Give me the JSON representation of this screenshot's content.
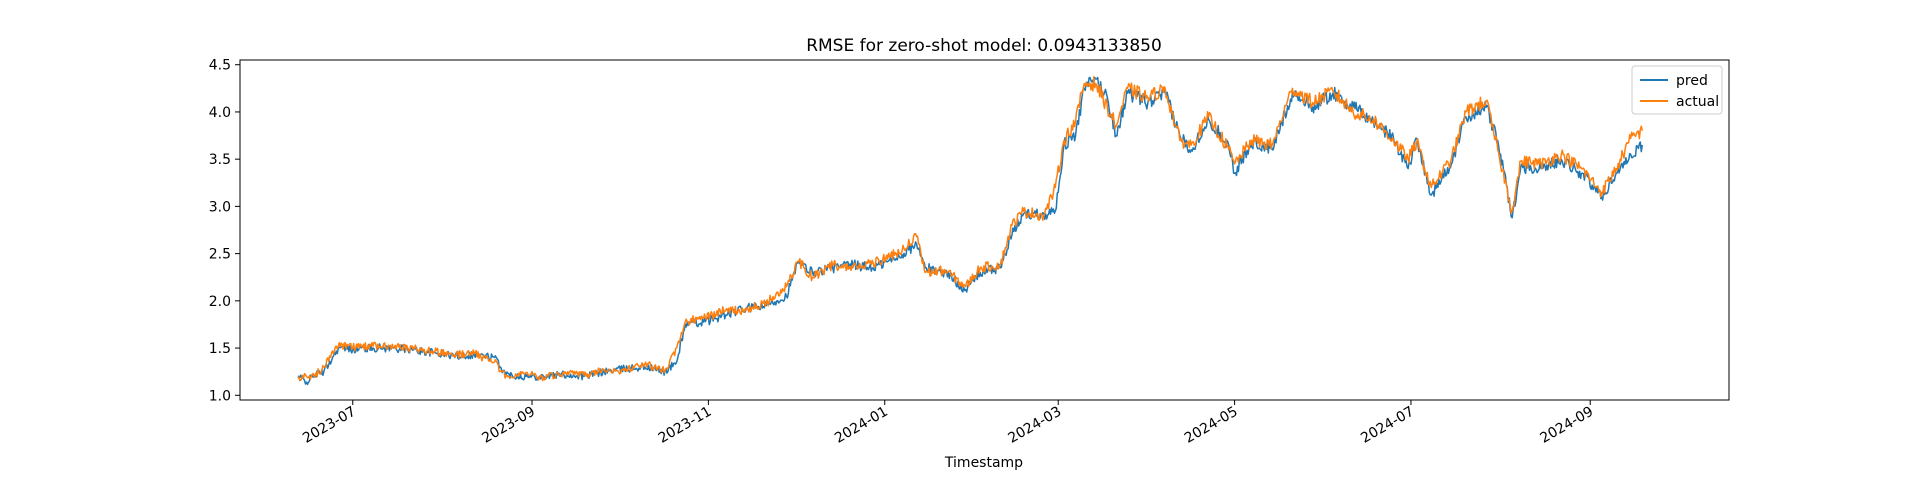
{
  "chart_data": {
    "type": "line",
    "title": "RMSE for zero-shot model: 0.0943133850",
    "xlabel": "Timestamp",
    "ylabel": "",
    "xlim": [
      "2023-05-23",
      "2024-10-19"
    ],
    "ylim": [
      0.95,
      4.55
    ],
    "x_ticks": [
      "2023-07",
      "2023-09",
      "2023-11",
      "2024-01",
      "2024-03",
      "2024-05",
      "2024-07",
      "2024-09"
    ],
    "y_ticks": [
      "1.0",
      "1.5",
      "2.0",
      "2.5",
      "3.0",
      "3.5",
      "4.0",
      "4.5"
    ],
    "grid": false,
    "legend_position": "top-right",
    "series": [
      {
        "name": "pred",
        "color": "#1f77b4",
        "points": [
          [
            "2023-06-12",
            1.2
          ],
          [
            "2023-06-15",
            1.14
          ],
          [
            "2023-06-18",
            1.22
          ],
          [
            "2023-06-21",
            1.25
          ],
          [
            "2023-06-24",
            1.4
          ],
          [
            "2023-06-26",
            1.5
          ],
          [
            "2023-07-01",
            1.49
          ],
          [
            "2023-07-08",
            1.5
          ],
          [
            "2023-07-15",
            1.5
          ],
          [
            "2023-07-22",
            1.48
          ],
          [
            "2023-07-29",
            1.45
          ],
          [
            "2023-08-05",
            1.42
          ],
          [
            "2023-08-12",
            1.43
          ],
          [
            "2023-08-19",
            1.4
          ],
          [
            "2023-08-23",
            1.22
          ],
          [
            "2023-08-30",
            1.2
          ],
          [
            "2023-09-05",
            1.2
          ],
          [
            "2023-09-12",
            1.22
          ],
          [
            "2023-09-19",
            1.2
          ],
          [
            "2023-09-26",
            1.25
          ],
          [
            "2023-10-03",
            1.28
          ],
          [
            "2023-10-10",
            1.3
          ],
          [
            "2023-10-17",
            1.25
          ],
          [
            "2023-10-21",
            1.35
          ],
          [
            "2023-10-24",
            1.75
          ],
          [
            "2023-10-31",
            1.78
          ],
          [
            "2023-11-07",
            1.85
          ],
          [
            "2023-11-14",
            1.92
          ],
          [
            "2023-11-21",
            1.95
          ],
          [
            "2023-11-28",
            2.05
          ],
          [
            "2023-12-02",
            2.4
          ],
          [
            "2023-12-07",
            2.3
          ],
          [
            "2023-12-14",
            2.35
          ],
          [
            "2023-12-21",
            2.38
          ],
          [
            "2023-12-28",
            2.35
          ],
          [
            "2024-01-05",
            2.45
          ],
          [
            "2024-01-12",
            2.6
          ],
          [
            "2024-01-15",
            2.35
          ],
          [
            "2024-01-22",
            2.3
          ],
          [
            "2024-01-29",
            2.12
          ],
          [
            "2024-02-03",
            2.3
          ],
          [
            "2024-02-10",
            2.35
          ],
          [
            "2024-02-14",
            2.7
          ],
          [
            "2024-02-18",
            2.92
          ],
          [
            "2024-02-25",
            2.92
          ],
          [
            "2024-02-29",
            2.95
          ],
          [
            "2024-03-03",
            3.65
          ],
          [
            "2024-03-07",
            3.75
          ],
          [
            "2024-03-10",
            4.25
          ],
          [
            "2024-03-14",
            4.35
          ],
          [
            "2024-03-18",
            4.15
          ],
          [
            "2024-03-21",
            3.75
          ],
          [
            "2024-03-25",
            4.2
          ],
          [
            "2024-04-01",
            4.1
          ],
          [
            "2024-04-07",
            4.2
          ],
          [
            "2024-04-12",
            3.75
          ],
          [
            "2024-04-16",
            3.6
          ],
          [
            "2024-04-22",
            3.92
          ],
          [
            "2024-04-29",
            3.65
          ],
          [
            "2024-05-01",
            3.35
          ],
          [
            "2024-05-07",
            3.68
          ],
          [
            "2024-05-14",
            3.6
          ],
          [
            "2024-05-21",
            4.2
          ],
          [
            "2024-05-28",
            4.05
          ],
          [
            "2024-06-04",
            4.2
          ],
          [
            "2024-06-11",
            4.05
          ],
          [
            "2024-06-18",
            3.9
          ],
          [
            "2024-06-25",
            3.72
          ],
          [
            "2024-06-30",
            3.4
          ],
          [
            "2024-07-03",
            3.72
          ],
          [
            "2024-07-08",
            3.12
          ],
          [
            "2024-07-15",
            3.45
          ],
          [
            "2024-07-20",
            3.95
          ],
          [
            "2024-07-27",
            4.05
          ],
          [
            "2024-07-31",
            3.7
          ],
          [
            "2024-08-05",
            2.88
          ],
          [
            "2024-08-08",
            3.42
          ],
          [
            "2024-08-15",
            3.4
          ],
          [
            "2024-08-22",
            3.5
          ],
          [
            "2024-08-29",
            3.35
          ],
          [
            "2024-09-05",
            3.1
          ],
          [
            "2024-09-10",
            3.35
          ],
          [
            "2024-09-15",
            3.55
          ],
          [
            "2024-09-19",
            3.65
          ]
        ]
      },
      {
        "name": "actual",
        "color": "#ff7f0e",
        "points": [
          [
            "2023-06-12",
            1.18
          ],
          [
            "2023-06-15",
            1.2
          ],
          [
            "2023-06-18",
            1.21
          ],
          [
            "2023-06-21",
            1.3
          ],
          [
            "2023-06-24",
            1.47
          ],
          [
            "2023-06-26",
            1.52
          ],
          [
            "2023-07-01",
            1.51
          ],
          [
            "2023-07-08",
            1.52
          ],
          [
            "2023-07-15",
            1.51
          ],
          [
            "2023-07-22",
            1.49
          ],
          [
            "2023-07-29",
            1.46
          ],
          [
            "2023-08-05",
            1.43
          ],
          [
            "2023-08-12",
            1.44
          ],
          [
            "2023-08-19",
            1.35
          ],
          [
            "2023-08-23",
            1.2
          ],
          [
            "2023-08-30",
            1.24
          ],
          [
            "2023-09-05",
            1.19
          ],
          [
            "2023-09-12",
            1.23
          ],
          [
            "2023-09-19",
            1.21
          ],
          [
            "2023-09-26",
            1.27
          ],
          [
            "2023-10-03",
            1.26
          ],
          [
            "2023-10-10",
            1.33
          ],
          [
            "2023-10-17",
            1.26
          ],
          [
            "2023-10-21",
            1.5
          ],
          [
            "2023-10-24",
            1.78
          ],
          [
            "2023-10-31",
            1.82
          ],
          [
            "2023-11-07",
            1.9
          ],
          [
            "2023-11-14",
            1.9
          ],
          [
            "2023-11-21",
            1.98
          ],
          [
            "2023-11-28",
            2.15
          ],
          [
            "2023-12-02",
            2.42
          ],
          [
            "2023-12-07",
            2.25
          ],
          [
            "2023-12-14",
            2.38
          ],
          [
            "2023-12-21",
            2.35
          ],
          [
            "2023-12-28",
            2.4
          ],
          [
            "2024-01-05",
            2.5
          ],
          [
            "2024-01-12",
            2.68
          ],
          [
            "2024-01-15",
            2.3
          ],
          [
            "2024-01-22",
            2.32
          ],
          [
            "2024-01-29",
            2.15
          ],
          [
            "2024-02-03",
            2.35
          ],
          [
            "2024-02-10",
            2.38
          ],
          [
            "2024-02-14",
            2.8
          ],
          [
            "2024-02-18",
            2.95
          ],
          [
            "2024-02-25",
            2.9
          ],
          [
            "2024-02-29",
            3.2
          ],
          [
            "2024-03-03",
            3.7
          ],
          [
            "2024-03-07",
            3.9
          ],
          [
            "2024-03-10",
            4.3
          ],
          [
            "2024-03-14",
            4.3
          ],
          [
            "2024-03-18",
            4.05
          ],
          [
            "2024-03-21",
            3.85
          ],
          [
            "2024-03-25",
            4.25
          ],
          [
            "2024-04-01",
            4.15
          ],
          [
            "2024-04-07",
            4.25
          ],
          [
            "2024-04-12",
            3.7
          ],
          [
            "2024-04-16",
            3.65
          ],
          [
            "2024-04-22",
            3.95
          ],
          [
            "2024-04-29",
            3.6
          ],
          [
            "2024-05-01",
            3.45
          ],
          [
            "2024-05-07",
            3.7
          ],
          [
            "2024-05-14",
            3.65
          ],
          [
            "2024-05-21",
            4.25
          ],
          [
            "2024-05-28",
            4.1
          ],
          [
            "2024-06-04",
            4.22
          ],
          [
            "2024-06-11",
            4.0
          ],
          [
            "2024-06-18",
            3.92
          ],
          [
            "2024-06-25",
            3.7
          ],
          [
            "2024-06-30",
            3.5
          ],
          [
            "2024-07-03",
            3.68
          ],
          [
            "2024-07-08",
            3.2
          ],
          [
            "2024-07-15",
            3.5
          ],
          [
            "2024-07-20",
            4.0
          ],
          [
            "2024-07-27",
            4.12
          ],
          [
            "2024-07-31",
            3.6
          ],
          [
            "2024-08-05",
            2.95
          ],
          [
            "2024-08-08",
            3.48
          ],
          [
            "2024-08-15",
            3.45
          ],
          [
            "2024-08-22",
            3.55
          ],
          [
            "2024-08-29",
            3.4
          ],
          [
            "2024-09-05",
            3.15
          ],
          [
            "2024-09-10",
            3.4
          ],
          [
            "2024-09-15",
            3.72
          ],
          [
            "2024-09-19",
            3.8
          ]
        ]
      }
    ]
  }
}
